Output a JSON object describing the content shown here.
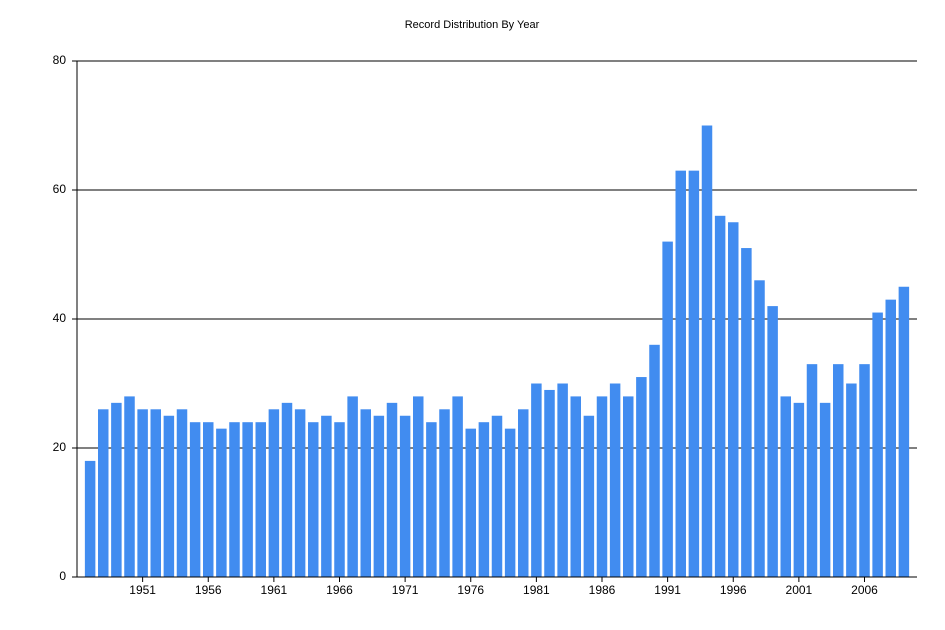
{
  "chart_data": {
    "type": "bar",
    "title": "Record Distribution By Year",
    "x": [
      1947,
      1948,
      1949,
      1950,
      1951,
      1952,
      1953,
      1954,
      1955,
      1956,
      1957,
      1958,
      1959,
      1960,
      1961,
      1962,
      1963,
      1964,
      1965,
      1966,
      1967,
      1968,
      1969,
      1970,
      1971,
      1972,
      1973,
      1974,
      1975,
      1976,
      1977,
      1978,
      1979,
      1980,
      1981,
      1982,
      1983,
      1984,
      1985,
      1986,
      1987,
      1988,
      1989,
      1990,
      1991,
      1992,
      1993,
      1994,
      1995,
      1996,
      1997,
      1998,
      1999,
      2000,
      2001,
      2002,
      2003,
      2004,
      2005,
      2006,
      2007,
      2008,
      2009
    ],
    "values": [
      18,
      26,
      27,
      28,
      26,
      26,
      25,
      26,
      24,
      24,
      23,
      24,
      24,
      24,
      26,
      27,
      26,
      24,
      25,
      24,
      28,
      26,
      25,
      27,
      25,
      28,
      24,
      26,
      28,
      23,
      24,
      25,
      23,
      26,
      30,
      29,
      30,
      28,
      25,
      28,
      30,
      28,
      31,
      36,
      52,
      63,
      63,
      70,
      56,
      55,
      51,
      46,
      42,
      28,
      27,
      33,
      27,
      33,
      30,
      33,
      41,
      43,
      45
    ],
    "color": "#418cf0",
    "xlim": [
      1946,
      2010
    ],
    "xticks": [
      1951,
      1956,
      1961,
      1966,
      1971,
      1976,
      1981,
      1986,
      1991,
      1996,
      2001,
      2006
    ],
    "ylim": [
      0,
      80
    ],
    "yticks": [
      0,
      20,
      40,
      60,
      80
    ],
    "grid": true
  }
}
